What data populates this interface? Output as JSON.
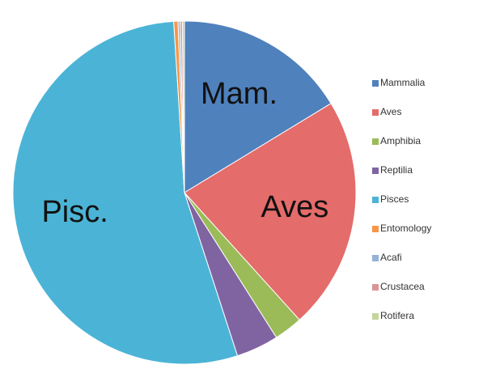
{
  "chart_data": {
    "type": "pie",
    "categories": [
      "Mammalia",
      "Aves",
      "Amphibia",
      "Reptilia",
      "Pisces",
      "Entomology",
      "Acafi",
      "Crustacea",
      "Rotifera"
    ],
    "values": [
      16.3,
      22,
      2.7,
      4,
      54,
      0.4,
      0.2,
      0.2,
      0.2
    ],
    "colors": [
      "#4f81bd",
      "#e46c6a",
      "#9bbb59",
      "#8064a2",
      "#4bb4d6",
      "#f79646",
      "#95b3d7",
      "#d99694",
      "#c3d69b"
    ],
    "slice_labels": [
      "Mam.",
      "Aves",
      null,
      null,
      "Pisc.",
      null,
      null,
      null,
      null
    ],
    "legend": "right"
  }
}
